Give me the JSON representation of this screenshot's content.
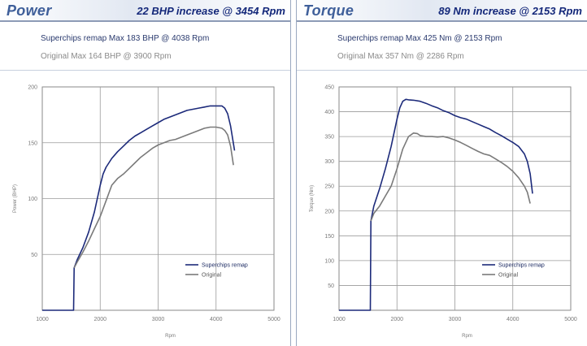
{
  "chart_data": [
    {
      "type": "line",
      "title": "Power",
      "headline": "22 BHP increase @ 3454 Rpm",
      "remap_summary": "Superchips remap Max 183 BHP @ 4038 Rpm",
      "original_summary": "Original Max 164 BHP @ 3900 Rpm",
      "xlabel": "Rpm",
      "ylabel": "Power (BHP)",
      "xlim": [
        1000,
        5000
      ],
      "ylim": [
        0,
        200
      ],
      "xticks": [
        1000,
        2000,
        3000,
        4000,
        5000
      ],
      "yticks": [
        50,
        100,
        150,
        200
      ],
      "grid": true,
      "legend_position": "bottom-right",
      "series": [
        {
          "name": "Superchips remap",
          "color": "#1c2a7a",
          "x": [
            1000,
            1500,
            1540,
            1550,
            1600,
            1700,
            1800,
            1900,
            2000,
            2050,
            2100,
            2200,
            2300,
            2400,
            2500,
            2600,
            2700,
            2800,
            2900,
            3000,
            3100,
            3200,
            3300,
            3400,
            3500,
            3600,
            3700,
            3800,
            3900,
            4000,
            4040,
            4100,
            4150,
            4200,
            4250,
            4320
          ],
          "y": [
            0,
            0,
            0,
            38,
            45,
            56,
            70,
            88,
            112,
            122,
            128,
            136,
            142,
            147,
            152,
            156,
            159,
            162,
            165,
            168,
            171,
            173,
            175,
            177,
            179,
            180,
            181,
            182,
            183,
            183,
            183,
            183,
            181,
            176,
            165,
            143
          ]
        },
        {
          "name": "Original",
          "color": "#7a7a7a",
          "x": [
            1550,
            1600,
            1700,
            1800,
            1900,
            2000,
            2100,
            2200,
            2300,
            2400,
            2500,
            2600,
            2700,
            2800,
            2900,
            3000,
            3100,
            3200,
            3300,
            3400,
            3500,
            3600,
            3700,
            3800,
            3900,
            4000,
            4100,
            4150,
            4200,
            4250,
            4300
          ],
          "y": [
            38,
            43,
            52,
            62,
            73,
            84,
            98,
            112,
            118,
            122,
            127,
            132,
            137,
            141,
            145,
            148,
            150,
            152,
            153,
            155,
            157,
            159,
            161,
            163,
            164,
            164,
            163,
            161,
            157,
            147,
            130
          ]
        }
      ]
    },
    {
      "type": "line",
      "title": "Torque",
      "headline": "89 Nm increase @ 2153 Rpm",
      "remap_summary": "Superchips remap Max 425 Nm @ 2153 Rpm",
      "original_summary": "Original Max 357 Nm @ 2286 Rpm",
      "xlabel": "Rpm",
      "ylabel": "Torque (Nm)",
      "xlim": [
        1000,
        5000
      ],
      "ylim": [
        0,
        450
      ],
      "xticks": [
        1000,
        2000,
        3000,
        4000,
        5000
      ],
      "yticks": [
        50,
        100,
        150,
        200,
        250,
        300,
        350,
        400,
        450
      ],
      "grid": true,
      "legend_position": "bottom-right",
      "series": [
        {
          "name": "Superchips remap",
          "color": "#1c2a7a",
          "x": [
            1000,
            1500,
            1540,
            1550,
            1600,
            1700,
            1800,
            1900,
            2000,
            2050,
            2100,
            2153,
            2200,
            2300,
            2400,
            2500,
            2600,
            2700,
            2800,
            2900,
            3000,
            3100,
            3200,
            3300,
            3400,
            3500,
            3600,
            3700,
            3800,
            3900,
            4000,
            4100,
            4200,
            4250,
            4300,
            4340
          ],
          "y": [
            0,
            0,
            0,
            180,
            210,
            245,
            285,
            330,
            385,
            408,
            421,
            425,
            424,
            423,
            421,
            417,
            412,
            408,
            402,
            398,
            392,
            388,
            385,
            380,
            375,
            370,
            365,
            358,
            352,
            345,
            338,
            330,
            315,
            300,
            275,
            235
          ]
        },
        {
          "name": "Original",
          "color": "#7a7a7a",
          "x": [
            1550,
            1600,
            1700,
            1800,
            1900,
            2000,
            2100,
            2200,
            2286,
            2350,
            2400,
            2500,
            2600,
            2700,
            2800,
            2900,
            3000,
            3100,
            3200,
            3300,
            3400,
            3500,
            3600,
            3700,
            3800,
            3900,
            4000,
            4100,
            4200,
            4250,
            4300
          ],
          "y": [
            180,
            195,
            210,
            230,
            250,
            285,
            325,
            350,
            357,
            356,
            352,
            350,
            350,
            349,
            350,
            347,
            343,
            338,
            332,
            326,
            320,
            315,
            312,
            305,
            298,
            290,
            280,
            267,
            250,
            238,
            215
          ]
        }
      ]
    }
  ]
}
